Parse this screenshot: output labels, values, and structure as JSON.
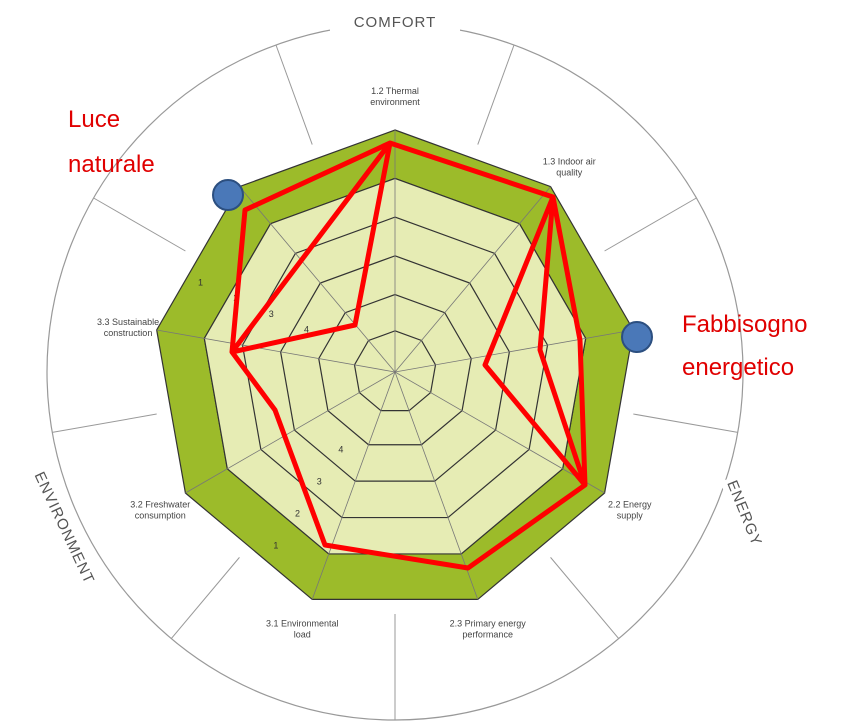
{
  "title": "COMFORT",
  "sections": {
    "comfort": "COMFORT",
    "energy": "ENERGY",
    "environment": "ENVIRONMENT"
  },
  "axes": [
    {
      "label": [
        "1.2 Thermal",
        "environment"
      ]
    },
    {
      "label": [
        "1.3 Indoor air",
        "quality"
      ]
    },
    {
      "label": []
    },
    {
      "label": [
        "2.2 Energy",
        "supply"
      ]
    },
    {
      "label": [
        "2.3 Primary energy",
        "performance"
      ]
    },
    {
      "label": [
        "3.1 Environmental",
        "load"
      ]
    },
    {
      "label": [
        "3.2 Freshwater",
        "consumption"
      ]
    },
    {
      "label": [
        "3.3 Sustainable",
        "construction"
      ]
    },
    {
      "label": []
    }
  ],
  "levels": [
    "1",
    "2",
    "3",
    "4"
  ],
  "annotations": {
    "luce": [
      "Luce",
      "naturale"
    ],
    "fabbisogno": [
      "Fabbisogno",
      "energetico"
    ]
  }
}
